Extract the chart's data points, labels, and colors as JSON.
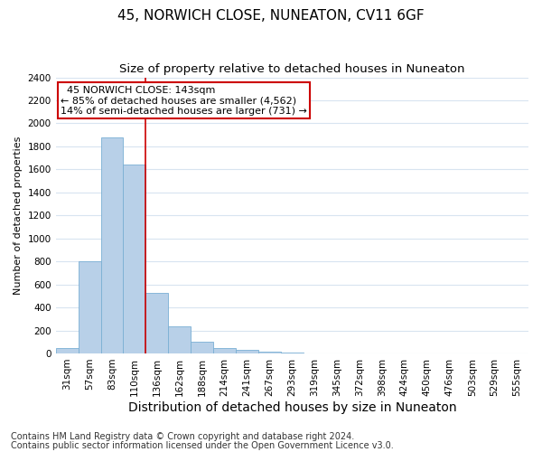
{
  "title": "45, NORWICH CLOSE, NUNEATON, CV11 6GF",
  "subtitle": "Size of property relative to detached houses in Nuneaton",
  "xlabel": "Distribution of detached houses by size in Nuneaton",
  "ylabel": "Number of detached properties",
  "bar_labels": [
    "31sqm",
    "57sqm",
    "83sqm",
    "110sqm",
    "136sqm",
    "162sqm",
    "188sqm",
    "214sqm",
    "241sqm",
    "267sqm",
    "293sqm",
    "319sqm",
    "345sqm",
    "372sqm",
    "398sqm",
    "424sqm",
    "450sqm",
    "476sqm",
    "503sqm",
    "529sqm",
    "555sqm"
  ],
  "bar_values": [
    50,
    800,
    1880,
    1640,
    530,
    235,
    105,
    50,
    30,
    15,
    5,
    0,
    0,
    0,
    0,
    0,
    0,
    0,
    0,
    0,
    0
  ],
  "bar_color": "#b8d0e8",
  "bar_edge_color": "#7aafd4",
  "vline_index": 4,
  "annotation_title": "45 NORWICH CLOSE: 143sqm",
  "annotation_line1": "← 85% of detached houses are smaller (4,562)",
  "annotation_line2": "14% of semi-detached houses are larger (731) →",
  "annotation_box_color": "#ffffff",
  "annotation_box_edge_color": "#cc0000",
  "vline_color": "#cc0000",
  "ylim": [
    0,
    2400
  ],
  "yticks": [
    0,
    200,
    400,
    600,
    800,
    1000,
    1200,
    1400,
    1600,
    1800,
    2000,
    2200,
    2400
  ],
  "footnote1": "Contains HM Land Registry data © Crown copyright and database right 2024.",
  "footnote2": "Contains public sector information licensed under the Open Government Licence v3.0.",
  "background_color": "#ffffff",
  "plot_bg_color": "#ffffff",
  "grid_color": "#d8e4f0",
  "title_fontsize": 11,
  "subtitle_fontsize": 9.5,
  "xlabel_fontsize": 10,
  "ylabel_fontsize": 8,
  "tick_fontsize": 7.5,
  "annotation_fontsize": 8,
  "footnote_fontsize": 7
}
